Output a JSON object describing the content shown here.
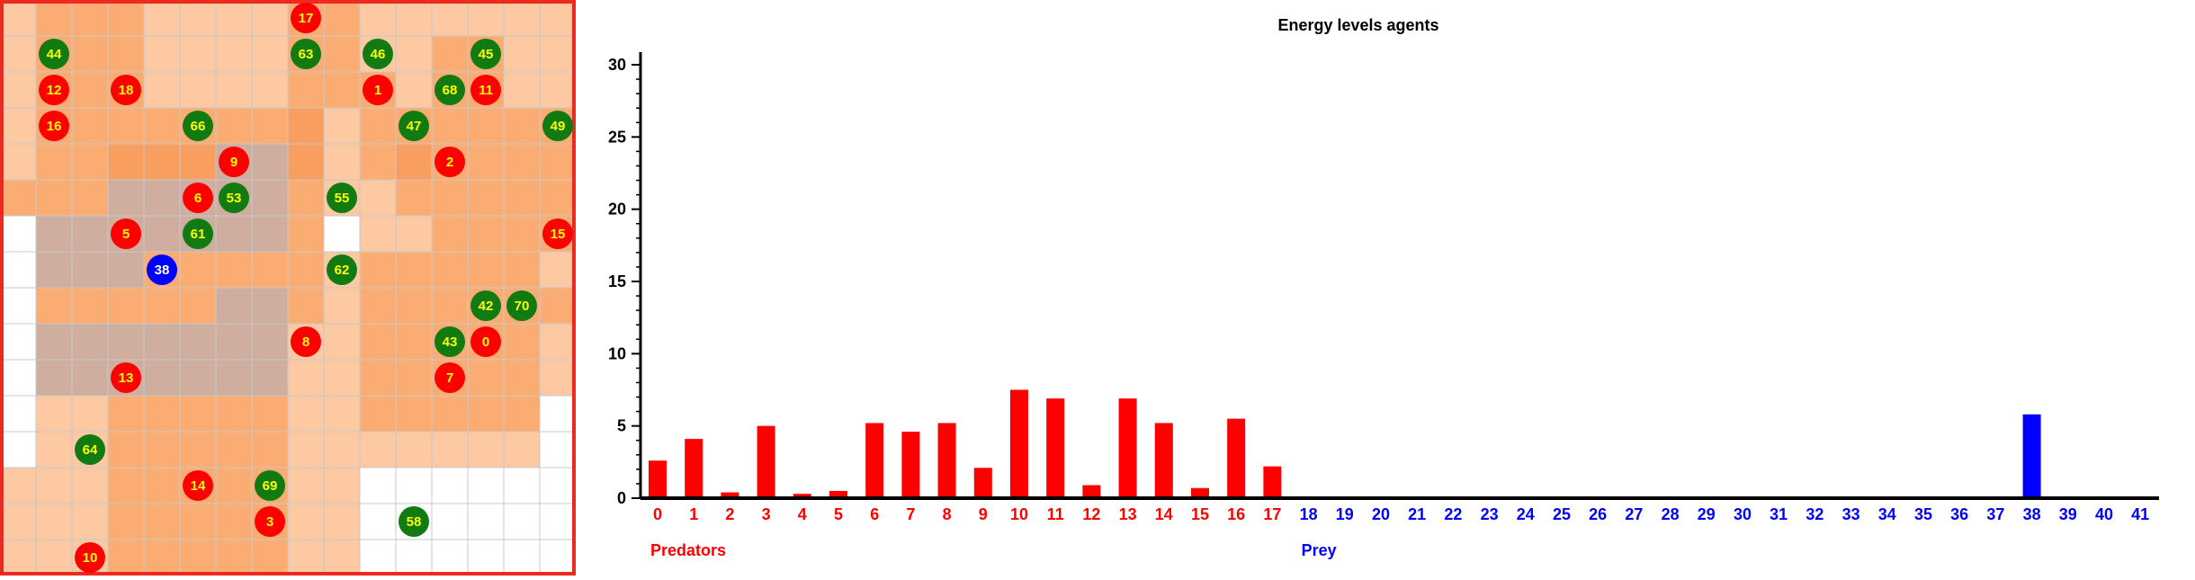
{
  "grid": {
    "cols": 16,
    "rows": 16,
    "colors": {
      "white": "#ffffff",
      "light": "#fdc9a3",
      "medium": "#fbac72",
      "dark": "#f89e5e",
      "gray": "#cfaea0",
      "line": "#c8c8c8",
      "border": "#ee2a20",
      "predator": "#ff0000",
      "prey": "#0000ff",
      "food": "#117a11",
      "label": "#ffff00"
    },
    "cells": [
      "LMMMLLLLMMLLLLLL",
      "LMMMLLLLMMLLMMLL",
      "LMMMLLLLMMMLMMLL",
      "LMMMMMMMDLMMMMMM",
      "LMMDDDGGDLMDMMMM",
      "MMMGGGGGMLLMMMMM",
      "WGGGGGGGMWLLMMMM",
      "WGGGMMMMMLMMMMML",
      "WMMMMMGGMLMMMMMM",
      "WGGGGGGGLLMMMMML",
      "WGGGGGGGLLMMMMML",
      "WLLMMMMMLLMMMMMW",
      "WLLMMMMMLLLLLLLW",
      "LLLMMMMMLLWWWWWW",
      "LLLMMMMMLLWWWWWW",
      "LLLMMMMMLLWWWWWW"
    ],
    "agents": [
      {
        "id": "17",
        "kind": "predator",
        "col": 8,
        "row": 0
      },
      {
        "id": "44",
        "kind": "food",
        "col": 1,
        "row": 1
      },
      {
        "id": "63",
        "kind": "food",
        "col": 8,
        "row": 1
      },
      {
        "id": "46",
        "kind": "food",
        "col": 10,
        "row": 1
      },
      {
        "id": "45",
        "kind": "food",
        "col": 13,
        "row": 1
      },
      {
        "id": "12",
        "kind": "predator",
        "col": 1,
        "row": 2
      },
      {
        "id": "18",
        "kind": "predator",
        "col": 3,
        "row": 2
      },
      {
        "id": "1",
        "kind": "predator",
        "col": 10,
        "row": 2
      },
      {
        "id": "68",
        "kind": "food",
        "col": 12,
        "row": 2
      },
      {
        "id": "11",
        "kind": "predator",
        "col": 13,
        "row": 2
      },
      {
        "id": "16",
        "kind": "predator",
        "col": 1,
        "row": 3
      },
      {
        "id": "66",
        "kind": "food",
        "col": 5,
        "row": 3
      },
      {
        "id": "47",
        "kind": "food",
        "col": 11,
        "row": 3
      },
      {
        "id": "49",
        "kind": "food",
        "col": 15,
        "row": 3
      },
      {
        "id": "9",
        "kind": "predator",
        "col": 6,
        "row": 4
      },
      {
        "id": "2",
        "kind": "predator",
        "col": 12,
        "row": 4
      },
      {
        "id": "6",
        "kind": "predator",
        "col": 5,
        "row": 5
      },
      {
        "id": "53",
        "kind": "food",
        "col": 6,
        "row": 5
      },
      {
        "id": "55",
        "kind": "food",
        "col": 9,
        "row": 5
      },
      {
        "id": "5",
        "kind": "predator",
        "col": 3,
        "row": 6
      },
      {
        "id": "61",
        "kind": "food",
        "col": 5,
        "row": 6
      },
      {
        "id": "15",
        "kind": "predator",
        "col": 15,
        "row": 6
      },
      {
        "id": "38",
        "kind": "prey",
        "col": 4,
        "row": 7
      },
      {
        "id": "62",
        "kind": "food",
        "col": 9,
        "row": 7
      },
      {
        "id": "42",
        "kind": "food",
        "col": 13,
        "row": 8
      },
      {
        "id": "70",
        "kind": "food",
        "col": 14,
        "row": 8
      },
      {
        "id": "8",
        "kind": "predator",
        "col": 8,
        "row": 9
      },
      {
        "id": "43",
        "kind": "food",
        "col": 12,
        "row": 9
      },
      {
        "id": "0",
        "kind": "predator",
        "col": 13,
        "row": 9
      },
      {
        "id": "13",
        "kind": "predator",
        "col": 3,
        "row": 10
      },
      {
        "id": "7",
        "kind": "predator",
        "col": 12,
        "row": 10
      },
      {
        "id": "64",
        "kind": "food",
        "col": 2,
        "row": 12
      },
      {
        "id": "14",
        "kind": "predator",
        "col": 5,
        "row": 13
      },
      {
        "id": "69",
        "kind": "food",
        "col": 7,
        "row": 13
      },
      {
        "id": "3",
        "kind": "predator",
        "col": 7,
        "row": 14
      },
      {
        "id": "58",
        "kind": "food",
        "col": 11,
        "row": 14
      },
      {
        "id": "10",
        "kind": "predator",
        "col": 2,
        "row": 15
      }
    ]
  },
  "chart_data": {
    "type": "bar",
    "title": "Energy levels agents",
    "ylim": [
      0,
      30
    ],
    "y_ticks": [
      0,
      5,
      10,
      15,
      20,
      25,
      30
    ],
    "categories": [
      "0",
      "1",
      "2",
      "3",
      "4",
      "5",
      "6",
      "7",
      "8",
      "9",
      "10",
      "11",
      "12",
      "13",
      "14",
      "15",
      "16",
      "17",
      "18",
      "19",
      "20",
      "21",
      "22",
      "23",
      "24",
      "25",
      "26",
      "27",
      "28",
      "29",
      "30",
      "31",
      "32",
      "33",
      "34",
      "35",
      "36",
      "37",
      "38",
      "39",
      "40",
      "41"
    ],
    "values": [
      2.6,
      4.1,
      0.4,
      5.0,
      0.3,
      0.5,
      5.2,
      4.6,
      5.2,
      2.1,
      7.5,
      6.9,
      0.9,
      6.9,
      5.2,
      0.7,
      5.5,
      2.2,
      0,
      0,
      0,
      0,
      0,
      0,
      0,
      0,
      0,
      0,
      0,
      0,
      0,
      0,
      0,
      0,
      0,
      0,
      0,
      0,
      5.8,
      0,
      0,
      0
    ],
    "groups": [
      {
        "label": "Predators",
        "from": 0,
        "to": 17,
        "color": "#ff0000"
      },
      {
        "label": "Prey",
        "from": 18,
        "to": 41,
        "color": "#0000ff"
      }
    ]
  }
}
